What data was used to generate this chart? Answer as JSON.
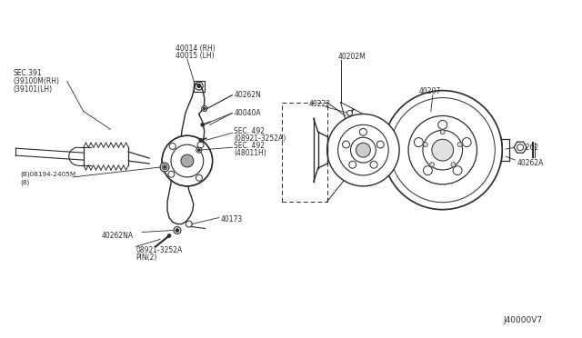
{
  "bg_color": "#ffffff",
  "line_color": "#2a2a2a",
  "text_color": "#111111",
  "fig_width": 6.4,
  "fig_height": 3.72,
  "part_number": "J40000V7",
  "labels": {
    "sec391": "SEC.391\n(39100M(RH)\n(39101(LH)",
    "p40014": "40014 (RH)\n40015 (LH)",
    "p40262N": "40262N",
    "p40040A": "40040A",
    "sec492a": "SEC. 492\n(08921-3252A)",
    "sec492b": "SEC. 492\n(48011H)",
    "p40173": "40173",
    "p40262NA": "40262NA",
    "pin": "08921-3252A\nPIN(2)",
    "bolt": "(B)08194-2405M\n(8)",
    "p40202M": "40202M",
    "p40222": "40222",
    "p40207": "40207",
    "p40262": "40262",
    "p40262A": "40262A"
  }
}
